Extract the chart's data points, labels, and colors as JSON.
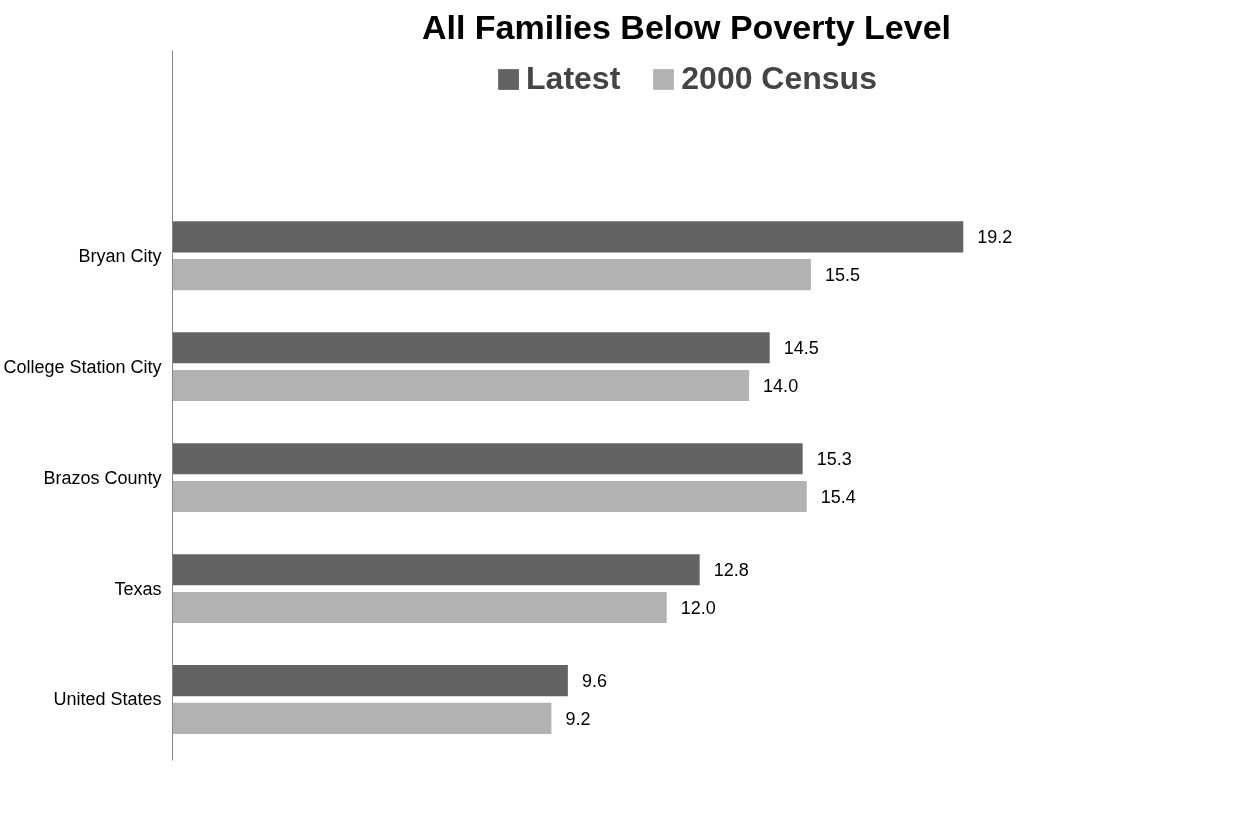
{
  "chart_data": {
    "type": "bar",
    "orientation": "horizontal",
    "title": "All Families Below Poverty Level",
    "categories": [
      "Bryan City",
      "College Station City",
      "Brazos County",
      "Texas",
      "United States"
    ],
    "series": [
      {
        "name": "Latest",
        "color": "#636363",
        "values": [
          19.2,
          14.5,
          15.3,
          12.8,
          9.6
        ],
        "value_labels": [
          "19.2",
          "14.5",
          "15.3",
          "12.8",
          "9.6"
        ]
      },
      {
        "name": "2000 Census",
        "color": "#b2b2b2",
        "values": [
          15.5,
          14.0,
          15.4,
          12.0,
          9.2
        ],
        "value_labels": [
          "15.5",
          "14.0",
          "15.4",
          "12.0",
          "9.2"
        ]
      }
    ],
    "legend": "top",
    "grid": false,
    "tick_labels": "y"
  }
}
